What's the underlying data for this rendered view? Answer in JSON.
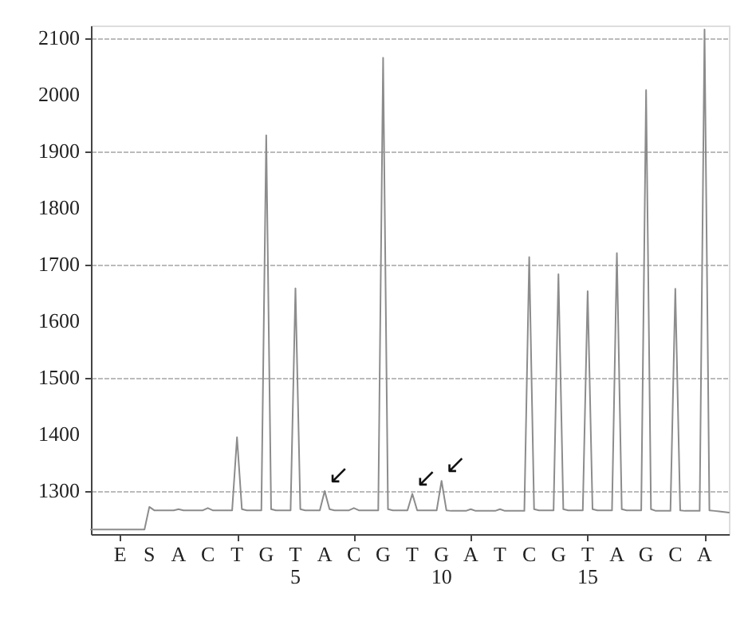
{
  "chart_data": {
    "type": "line",
    "categories": [
      null,
      null,
      null,
      null,
      null,
      null,
      "E",
      null,
      null,
      null,
      null,
      null,
      "S",
      null,
      null,
      null,
      null,
      null,
      "A",
      null,
      null,
      null,
      null,
      null,
      "C",
      null,
      null,
      null,
      null,
      null,
      "T",
      null,
      null,
      null,
      null,
      null,
      "G",
      null,
      null,
      null,
      null,
      null,
      "T\n5",
      null,
      null,
      null,
      null,
      null,
      "A",
      null,
      null,
      null,
      null,
      null,
      "C",
      null,
      null,
      null,
      null,
      null,
      "G",
      null,
      null,
      null,
      null,
      null,
      "T",
      null,
      null,
      null,
      null,
      null,
      "G\n10",
      null,
      null,
      null,
      null,
      null,
      "A",
      null,
      null,
      null,
      null,
      null,
      "T",
      null,
      null,
      null,
      null,
      null,
      "C",
      null,
      null,
      null,
      null,
      null,
      "G",
      null,
      null,
      null,
      null,
      null,
      "T\n15",
      null,
      null,
      null,
      null,
      null,
      "A",
      null,
      null,
      null,
      null,
      null,
      "G",
      null,
      null,
      null,
      null,
      null,
      "C",
      null,
      null,
      null,
      null,
      null,
      "A",
      null,
      null,
      null,
      null,
      null
    ],
    "series": [
      {
        "color": "#8c8c8c",
        "values": [
          1232,
          1232,
          1232,
          1232,
          1232,
          1232,
          1232,
          1232,
          1232,
          1232,
          1232,
          1232,
          1272,
          1266,
          1266,
          1266,
          1266,
          1266,
          1268,
          1266,
          1266,
          1266,
          1266,
          1266,
          1270,
          1266,
          1266,
          1266,
          1266,
          1266,
          1395,
          1268,
          1266,
          1266,
          1266,
          1266,
          1928,
          1268,
          1266,
          1266,
          1266,
          1266,
          1658,
          1268,
          1266,
          1266,
          1266,
          1266,
          1300,
          1268,
          1266,
          1266,
          1266,
          1266,
          1270,
          1266,
          1266,
          1266,
          1266,
          1266,
          2065,
          1268,
          1266,
          1266,
          1266,
          1266,
          1295,
          1266,
          1266,
          1266,
          1266,
          1266,
          1318,
          1266,
          1265,
          1265,
          1265,
          1265,
          1268,
          1265,
          1265,
          1265,
          1265,
          1265,
          1268,
          1265,
          1265,
          1265,
          1265,
          1265,
          1713,
          1268,
          1266,
          1266,
          1266,
          1266,
          1683,
          1268,
          1266,
          1266,
          1266,
          1266,
          1653,
          1268,
          1266,
          1266,
          1266,
          1266,
          1720,
          1268,
          1266,
          1266,
          1266,
          1266,
          2008,
          1268,
          1265,
          1265,
          1265,
          1265,
          1657,
          1266,
          1265,
          1265,
          1265,
          1265,
          2115,
          1266,
          1265,
          1264,
          1263,
          1262
        ]
      }
    ],
    "ylim": [
      1224,
      2122
    ],
    "yticks": [
      1300,
      1400,
      1500,
      1600,
      1700,
      1800,
      1900,
      2000,
      2100
    ],
    "grid": "y",
    "line_style": "solid",
    "annotations": [
      "↙",
      "↙",
      "↙"
    ]
  }
}
